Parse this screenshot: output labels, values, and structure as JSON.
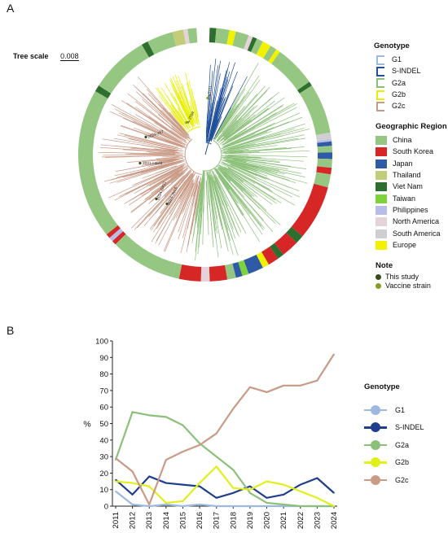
{
  "panel_a": {
    "label": "A",
    "tree_scale_label": "Tree scale",
    "tree_scale_value": "0.008",
    "tip_labels": [
      "CVT111",
      "A-JT04",
      "2024-JX7",
      "2021-HB48",
      "2024-GX11",
      "2024-JN15"
    ]
  },
  "genotype_legend": {
    "title": "Genotype",
    "items": [
      {
        "label": "G1",
        "color": "#9db9e0"
      },
      {
        "label": "S-INDEL",
        "color": "#1f4e9a"
      },
      {
        "label": "G2a",
        "color": "#8cc07a"
      },
      {
        "label": "G2b",
        "color": "#e7f000"
      },
      {
        "label": "G2c",
        "color": "#c99a86"
      }
    ]
  },
  "region_legend": {
    "title": "Geographic Region",
    "items": [
      {
        "label": "China",
        "color": "#95c783"
      },
      {
        "label": "South Korea",
        "color": "#d72626"
      },
      {
        "label": "Japan",
        "color": "#2f5aa6"
      },
      {
        "label": "Thailand",
        "color": "#c3cc78"
      },
      {
        "label": "Viet Nam",
        "color": "#2e6e2e"
      },
      {
        "label": "Taiwan",
        "color": "#7ed33a"
      },
      {
        "label": "Philippines",
        "color": "#b7bde6"
      },
      {
        "label": "North America",
        "color": "#e4d3d8"
      },
      {
        "label": "South America",
        "color": "#cfcfd1"
      },
      {
        "label": "Europe",
        "color": "#f2f200"
      }
    ]
  },
  "note_legend": {
    "title": "Note",
    "items": [
      {
        "label": "This study",
        "color": "#3a4a1a"
      },
      {
        "label": "Vaccine strain",
        "color": "#8a9a24"
      }
    ]
  },
  "panel_b": {
    "label": "B",
    "legend_title": "Genotype"
  },
  "chart_data": {
    "type": "line",
    "title": "",
    "xlabel": "",
    "ylabel": "%",
    "ylim": [
      0,
      100
    ],
    "yticks": [
      0,
      10,
      20,
      30,
      40,
      50,
      60,
      70,
      80,
      90,
      100
    ],
    "x": [
      "2011",
      "2012",
      "2013",
      "2014",
      "2015",
      "2016",
      "2017",
      "2018",
      "2019",
      "2020",
      "2021",
      "2022",
      "2023",
      "2024"
    ],
    "grid": false,
    "legend_position": "right",
    "series": [
      {
        "name": "G1",
        "color": "#9db9e0",
        "values": [
          9,
          1,
          0,
          1,
          0,
          1,
          0,
          0,
          0,
          0,
          0,
          0,
          0,
          0
        ]
      },
      {
        "name": "S-INDEL",
        "color": "#1f3f8c",
        "values": [
          16,
          7,
          18,
          14,
          13,
          12,
          5,
          8,
          12,
          5,
          7,
          13,
          17,
          8
        ]
      },
      {
        "name": "G2a",
        "color": "#8cc07a",
        "values": [
          28,
          57,
          55,
          54,
          49,
          38,
          30,
          22,
          8,
          2,
          1,
          0,
          0,
          0
        ]
      },
      {
        "name": "G2b",
        "color": "#e1ef1a",
        "values": [
          15,
          14,
          12,
          2,
          3,
          14,
          24,
          11,
          10,
          15,
          13,
          9,
          5,
          0
        ]
      },
      {
        "name": "G2c",
        "color": "#c99a86",
        "values": [
          29,
          21,
          1,
          28,
          33,
          37,
          44,
          59,
          72,
          69,
          73,
          73,
          76,
          92
        ]
      }
    ]
  }
}
